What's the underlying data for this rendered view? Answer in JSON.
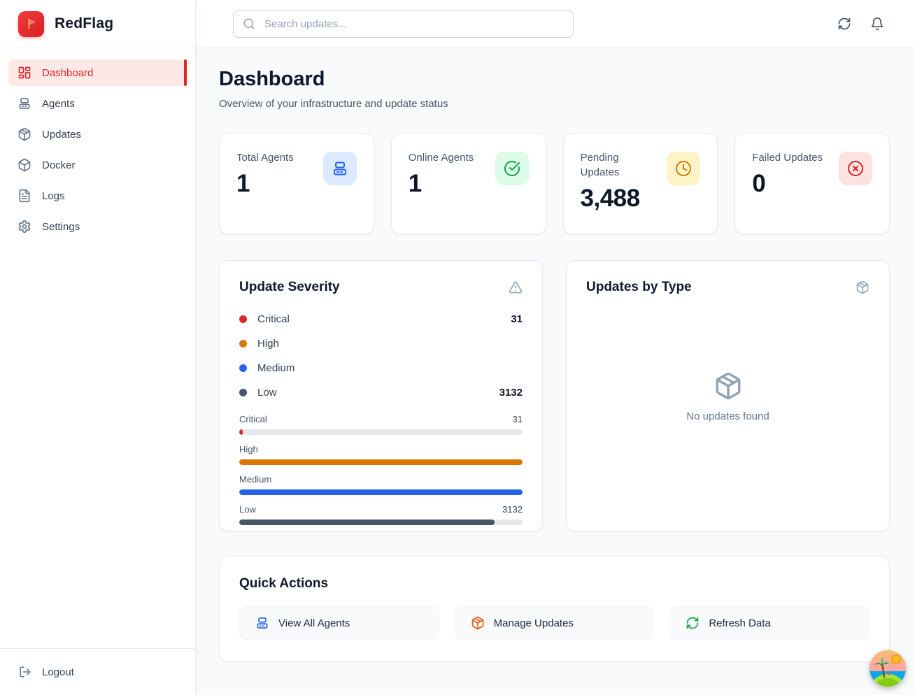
{
  "brand": {
    "name": "RedFlag",
    "accent_color": "#DC2626"
  },
  "sidebar": {
    "items": [
      {
        "label": "Dashboard",
        "icon": "dashboard-icon",
        "active": true
      },
      {
        "label": "Agents",
        "icon": "server-icon",
        "active": false
      },
      {
        "label": "Updates",
        "icon": "package-icon",
        "active": false
      },
      {
        "label": "Docker",
        "icon": "box-icon",
        "active": false
      },
      {
        "label": "Logs",
        "icon": "file-text-icon",
        "active": false
      },
      {
        "label": "Settings",
        "icon": "gear-icon",
        "active": false
      }
    ],
    "logout_label": "Logout"
  },
  "topbar": {
    "search_placeholder": "Search updates...",
    "icons": [
      "refresh-icon",
      "bell-icon"
    ]
  },
  "page": {
    "title": "Dashboard",
    "subtitle": "Overview of your infrastructure and update status"
  },
  "stats": [
    {
      "label": "Total Agents",
      "value": "1",
      "icon": "server-icon",
      "accent": "#2563EB",
      "tile_bg": "#DBEAFE"
    },
    {
      "label": "Online Agents",
      "value": "1",
      "icon": "check-circle-icon",
      "accent": "#16A34A",
      "tile_bg": "#DCFCE7"
    },
    {
      "label": "Pending Updates",
      "value": "3,488",
      "icon": "clock-icon",
      "accent": "#D97706",
      "tile_bg": "#FEF3C7"
    },
    {
      "label": "Failed Updates",
      "value": "0",
      "icon": "x-circle-icon",
      "accent": "#DC2626",
      "tile_bg": "#FEE2E2"
    }
  ],
  "severity_card": {
    "title": "Update Severity",
    "header_icon": "alert-triangle-icon",
    "legend": [
      {
        "label": "Critical",
        "value": "31",
        "color": "#DC2626"
      },
      {
        "label": "High",
        "value": "",
        "color": "#D97706"
      },
      {
        "label": "Medium",
        "value": "",
        "color": "#2563EB"
      },
      {
        "label": "Low",
        "value": "3132",
        "color": "#475569"
      }
    ],
    "bars": [
      {
        "label": "Critical",
        "value": "31",
        "percent": 1,
        "color": "#DC2626"
      },
      {
        "label": "High",
        "value": "",
        "percent": 100,
        "color": "#D97706"
      },
      {
        "label": "Medium",
        "value": "",
        "percent": 100,
        "color": "#2563EB"
      },
      {
        "label": "Low",
        "value": "3132",
        "percent": 90,
        "color": "#475569"
      }
    ],
    "track_color": "#E5E7EB"
  },
  "updates_by_type_card": {
    "title": "Updates by Type",
    "header_icon": "package-icon",
    "empty_icon": "package-icon",
    "empty_text": "No updates found"
  },
  "quick_actions": {
    "title": "Quick Actions",
    "buttons": [
      {
        "label": "View All Agents",
        "icon": "server-icon",
        "color": "#2563EB"
      },
      {
        "label": "Manage Updates",
        "icon": "package-icon",
        "color": "#EA580C"
      },
      {
        "label": "Refresh Data",
        "icon": "refresh-icon",
        "color": "#16A34A"
      }
    ]
  }
}
